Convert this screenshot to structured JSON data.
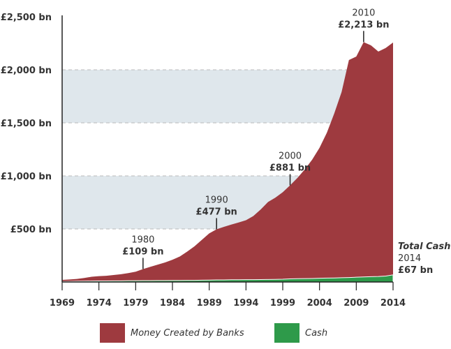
{
  "chart_data": {
    "type": "area",
    "stacked": true,
    "x": [
      1969,
      1970,
      1971,
      1972,
      1973,
      1974,
      1975,
      1976,
      1977,
      1978,
      1979,
      1980,
      1981,
      1982,
      1983,
      1984,
      1985,
      1986,
      1987,
      1988,
      1989,
      1990,
      1991,
      1992,
      1993,
      1994,
      1995,
      1996,
      1997,
      1998,
      1999,
      2000,
      2001,
      2002,
      2003,
      2004,
      2005,
      2006,
      2007,
      2008,
      2009,
      2010,
      2011,
      2012,
      2013,
      2014
    ],
    "series": [
      {
        "name": "Cash",
        "color": "#2e9a4a",
        "values": [
          5,
          6,
          7,
          8,
          9,
          10,
          10,
          11,
          11,
          12,
          12,
          13,
          13,
          14,
          14,
          15,
          15,
          16,
          16,
          17,
          18,
          20,
          20,
          21,
          21,
          22,
          22,
          23,
          24,
          25,
          26,
          30,
          31,
          32,
          33,
          35,
          37,
          38,
          40,
          42,
          45,
          48,
          50,
          52,
          56,
          67
        ]
      },
      {
        "name": "Money Created by Banks",
        "color": "#9e3a3f",
        "values": [
          15,
          18,
          22,
          30,
          40,
          45,
          48,
          55,
          62,
          72,
          85,
          109,
          130,
          150,
          170,
          195,
          225,
          270,
          320,
          380,
          440,
          477,
          500,
          520,
          540,
          560,
          600,
          660,
          730,
          770,
          820,
          881,
          950,
          1030,
          1120,
          1230,
          1370,
          1550,
          1750,
          2050,
          2080,
          2213,
          2180,
          2120,
          2150,
          2190
        ]
      }
    ],
    "xticks": [
      "1969",
      "1974",
      "1979",
      "1984",
      "1989",
      "1994",
      "1999",
      "2004",
      "2009",
      "2014"
    ],
    "yticks": [
      {
        "value": 500,
        "label": "£500 bn"
      },
      {
        "value": 1000,
        "label": "£1,000 bn"
      },
      {
        "value": 1500,
        "label": "£1,500 bn"
      },
      {
        "value": 2000,
        "label": "£2,000 bn"
      },
      {
        "value": 2500,
        "label": "£2,500 bn"
      }
    ],
    "xlim": [
      1969,
      2014
    ],
    "ylim": [
      0,
      2500
    ],
    "shaded_bands": [
      [
        500,
        1000
      ],
      [
        1500,
        2000
      ]
    ],
    "band_color": "#dfe7ec",
    "annotations": [
      {
        "x": 1980,
        "year": "1980",
        "value": "£109 bn"
      },
      {
        "x": 1990,
        "year": "1990",
        "value": "£477 bn"
      },
      {
        "x": 2000,
        "year": "2000",
        "value": "£881 bn"
      },
      {
        "x": 2010,
        "year": "2010",
        "value": "£2,213 bn"
      }
    ],
    "cash_note": {
      "line1": "Total Cash",
      "line2": "2014",
      "line3": "£67 bn"
    },
    "legend": [
      {
        "label": "Money Created by Banks",
        "color": "#9e3a3f"
      },
      {
        "label": "Cash",
        "color": "#2e9a4a"
      }
    ],
    "legend_position": "bottom"
  }
}
